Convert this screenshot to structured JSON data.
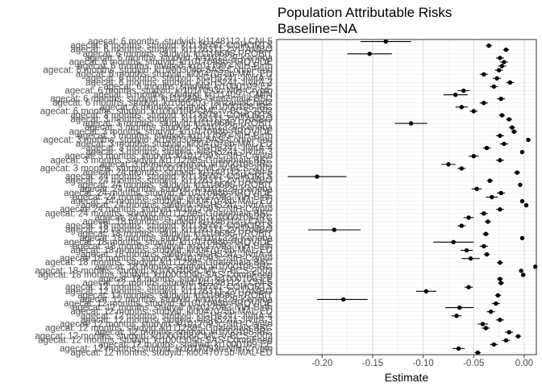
{
  "chart_data": {
    "type": "scatter",
    "title": "Population Attributable Risks",
    "subtitle": "Baseline=NA",
    "xlabel": "Estimate",
    "ylabel": "",
    "xlim": [
      -0.245,
      0.012
    ],
    "xticks": [
      -0.2,
      -0.15,
      -0.1,
      -0.05,
      0.0
    ],
    "xtick_labels": [
      "-0.20",
      "-0.15",
      "-0.10",
      "-0.05",
      "0.00"
    ],
    "grid": true,
    "legend": "none",
    "colors": {
      "point": "#000000",
      "grid_major": "#d9d9d9",
      "grid_minor": "#ececec",
      "panel_border": "#333333",
      "text": "#000000",
      "tick_text": "#4d4d4d"
    },
    "series": [
      {
        "label": "agecat: 6 months, studyid: ki1148112-LCNI-5",
        "estimate": -0.137,
        "lower": -0.162,
        "upper": -0.112
      },
      {
        "label": "agecat: 6 months, studyid: ki1135781-COHORTS",
        "estimate": -0.035,
        "lower": -0.038,
        "upper": -0.032
      },
      {
        "label": "agecat: 6 months, studyid: ki1126311-ZVITAMBO",
        "estimate": -0.018,
        "lower": -0.021,
        "upper": -0.015
      },
      {
        "label": "agecat: 6 months, studyid: ki1119695-PROBIT",
        "estimate": -0.153,
        "lower": -0.175,
        "upper": -0.131
      },
      {
        "label": "agecat: 6 months, studyid: ki1101329-Keneba",
        "estimate": -0.024,
        "lower": -0.028,
        "upper": -0.02
      },
      {
        "label": "agecat: 6 months, studyid: ki1017093b-PROVIDE",
        "estimate": -0.02,
        "lower": -0.024,
        "upper": -0.016
      },
      {
        "label": "agecat: 6 months, studyid: ki1017093-NIH-Birth",
        "estimate": -0.022,
        "lower": -0.026,
        "upper": -0.018
      },
      {
        "label": "agecat: 6 months, studyid: ki1000304b-SAS-CompFeed",
        "estimate": -0.025,
        "lower": -0.029,
        "upper": -0.021
      },
      {
        "label": "agecat: 6 months, studyid: ki0047075b-MAL-ED",
        "estimate": -0.04,
        "lower": -0.044,
        "upper": -0.036
      },
      {
        "label": "agecat: 6 months, studyid: kiGH5241-JiVitA-4",
        "estimate": -0.027,
        "lower": -0.031,
        "upper": -0.023
      },
      {
        "label": "agecat: 6 months, studyid: kiGH5241-JiVitA-3",
        "estimate": -0.014,
        "lower": -0.018,
        "upper": -0.01
      },
      {
        "label": "agecat: 6 months, studyid: ki1000109-EE",
        "estimate": -0.03,
        "lower": -0.034,
        "upper": -0.026
      },
      {
        "label": "agecat: 6 months, studyid: ki1017093c-NIH-Crypto",
        "estimate": -0.06,
        "lower": -0.066,
        "upper": -0.054
      },
      {
        "label": "agecat: 6 months, studyid: ki1114097-CMIN",
        "estimate": -0.068,
        "lower": -0.08,
        "upper": -0.056
      },
      {
        "label": "agecat: 6 months, studyid: ki1112895-Guatemala BSC",
        "estimate": -0.023,
        "lower": -0.027,
        "upper": -0.019
      },
      {
        "label": "agecat: 6 months, studyid: ki1066203-TanzaniaChild2",
        "estimate": -0.04,
        "lower": -0.044,
        "upper": -0.036
      },
      {
        "label": "agecat: 6 months, studyid: ki1000108-IRC",
        "estimate": -0.062,
        "lower": -0.068,
        "upper": -0.056
      },
      {
        "label": "agecat: 6 months, studyid: ki1000108-CMC-V-BCS-2002",
        "estimate": -0.05,
        "lower": -0.054,
        "upper": -0.046
      },
      {
        "label": "agecat: 3 months, studyid: ki1135781-COHORTS",
        "estimate": -0.022,
        "lower": -0.025,
        "upper": -0.019
      },
      {
        "label": "agecat: 3 months, studyid: ki1126311-ZVITAMBO",
        "estimate": -0.015,
        "lower": -0.018,
        "upper": -0.012
      },
      {
        "label": "agecat: 3 months, studyid: ki1119695-PROBIT",
        "estimate": -0.112,
        "lower": -0.128,
        "upper": -0.096
      },
      {
        "label": "agecat: 3 months, studyid: ki1101329-Keneba",
        "estimate": -0.012,
        "lower": -0.015,
        "upper": -0.009
      },
      {
        "label": "agecat: 3 months, studyid: ki1017093b-PROVIDE",
        "estimate": -0.01,
        "lower": -0.013,
        "upper": -0.007
      },
      {
        "label": "agecat: 3 months, studyid: ki1017093-NIH-Birth",
        "estimate": -0.024,
        "lower": -0.028,
        "upper": -0.02
      },
      {
        "label": "agecat: 3 months, studyid: ki1000304b-SAS-CompFeed",
        "estimate": 0.004,
        "lower": 0.002,
        "upper": 0.006
      },
      {
        "label": "agecat: 3 months, studyid: ki0047075b-MAL-ED",
        "estimate": -0.02,
        "lower": -0.024,
        "upper": -0.016
      },
      {
        "label": "agecat: 3 months, studyid: kiGH5241-JiVitA-4",
        "estimate": -0.037,
        "lower": -0.041,
        "upper": -0.033
      },
      {
        "label": "agecat: 3 months, studyid: kiGH5241-JiVitA-3",
        "estimate": -0.002,
        "lower": -0.004,
        "upper": 0.0
      },
      {
        "label": "agecat: 3 months, studyid: ki1017093c-NIH-Crypto",
        "estimate": -0.05,
        "lower": -0.055,
        "upper": -0.045
      },
      {
        "label": "agecat: 3 months, studyid: ki1112895-Guatemala BSC",
        "estimate": -0.024,
        "lower": -0.028,
        "upper": -0.02
      },
      {
        "label": "agecat: 3 months, studyid: ki1000108-IRC",
        "estimate": -0.075,
        "lower": -0.082,
        "upper": -0.068
      },
      {
        "label": "agecat: 3 months, studyid: ki1000108-CMC-V-BCS-2002",
        "estimate": -0.062,
        "lower": -0.066,
        "upper": -0.058
      },
      {
        "label": "agecat: 24 months, studyid: ki1148112-LCNI-5",
        "estimate": -0.007,
        "lower": -0.01,
        "upper": -0.004
      },
      {
        "label": "agecat: 24 months, studyid: ki1135781-COHORTS",
        "estimate": -0.205,
        "lower": -0.234,
        "upper": -0.176
      },
      {
        "label": "agecat: 24 months, studyid: ki1126311-ZVITAMBO",
        "estimate": -0.034,
        "lower": -0.037,
        "upper": -0.031
      },
      {
        "label": "agecat: 24 months, studyid: ki1119695-PROBIT",
        "estimate": -0.004,
        "lower": -0.006,
        "upper": -0.002
      },
      {
        "label": "agecat: 24 months, studyid: ki1101329-Keneba",
        "estimate": -0.047,
        "lower": -0.052,
        "upper": -0.042
      },
      {
        "label": "agecat: 24 months, studyid: ki1017093b-PROVIDE",
        "estimate": -0.023,
        "lower": -0.027,
        "upper": -0.019
      },
      {
        "label": "agecat: 24 months, studyid: ki1017093-NIH-Birth",
        "estimate": -0.032,
        "lower": -0.038,
        "upper": -0.026
      },
      {
        "label": "agecat: 24 months, studyid: ki0047075b-MAL-ED",
        "estimate": -0.002,
        "lower": -0.004,
        "upper": 0.0
      },
      {
        "label": "agecat: 24 months, studyid: kiGH5241-JiVitA-4",
        "estimate": 0.002,
        "lower": 0.0,
        "upper": 0.004
      },
      {
        "label": "agecat: 24 months, studyid: ki1017093c-NIH-Crypto",
        "estimate": -0.024,
        "lower": -0.028,
        "upper": -0.02
      },
      {
        "label": "agecat: 24 months, studyid: ki1112895-Guatemala BSC",
        "estimate": -0.04,
        "lower": -0.044,
        "upper": -0.036
      },
      {
        "label": "agecat: 24 months, studyid: ki1000108-IRC",
        "estimate": -0.055,
        "lower": -0.06,
        "upper": -0.05
      },
      {
        "label": "agecat: 18 months, studyid: ki1148112-LCNI-5",
        "estimate": -0.036,
        "lower": -0.039,
        "upper": -0.033
      },
      {
        "label": "agecat: 18 months, studyid: ki1135781-COHORTS",
        "estimate": -0.062,
        "lower": -0.066,
        "upper": -0.058
      },
      {
        "label": "agecat: 18 months, studyid: ki1126311-ZVITAMBO",
        "estimate": -0.188,
        "lower": -0.214,
        "upper": -0.162
      },
      {
        "label": "agecat: 18 months, studyid: ki1119695-PROBIT",
        "estimate": -0.038,
        "lower": -0.041,
        "upper": -0.035
      },
      {
        "label": "agecat: 18 months, studyid: ki1101329-Keneba",
        "estimate": -0.002,
        "lower": -0.004,
        "upper": 0.0
      },
      {
        "label": "agecat: 18 months, studyid: ki1017093b-PROVIDE",
        "estimate": -0.07,
        "lower": -0.09,
        "upper": -0.05
      },
      {
        "label": "agecat: 18 months, studyid: ki1017093-NIH-Birth",
        "estimate": -0.04,
        "lower": -0.044,
        "upper": -0.036
      },
      {
        "label": "agecat: 18 months, studyid: ki0047075b-MAL-ED",
        "estimate": -0.057,
        "lower": -0.063,
        "upper": -0.051
      },
      {
        "label": "agecat: 18 months, studyid: kiGH5241-JiVitA-4",
        "estimate": -0.037,
        "lower": -0.04,
        "upper": -0.034
      },
      {
        "label": "agecat: 18 months, studyid: ki1017093c-NIH-Crypto",
        "estimate": -0.053,
        "lower": -0.062,
        "upper": -0.044
      },
      {
        "label": "agecat: 18 months, studyid: ki1112895-Guatemala BSC",
        "estimate": -0.024,
        "lower": -0.027,
        "upper": -0.021
      },
      {
        "label": "agecat: 18 months, studyid: ki1000108-IRC",
        "estimate": 0.011,
        "lower": 0.009,
        "upper": 0.013
      },
      {
        "label": "agecat: 18 months, studyid: ki1000108-CMC-V-BCS-2002",
        "estimate": -0.003,
        "lower": -0.005,
        "upper": -0.001
      },
      {
        "label": "agecat: 18 months, studyid: ki1000304b-SAS-CompFeed",
        "estimate": -0.001,
        "lower": -0.003,
        "upper": 0.001
      },
      {
        "label": "agecat: 18 months, studyid: ki1000109-EE",
        "estimate": -0.024,
        "lower": -0.027,
        "upper": -0.021
      },
      {
        "label": "agecat: 12 months, studyid: ki1148112-LCNI-5",
        "estimate": -0.023,
        "lower": -0.026,
        "upper": -0.02
      },
      {
        "label": "agecat: 12 months, studyid: ki1135781-COHORTS",
        "estimate": -0.055,
        "lower": -0.059,
        "upper": -0.051
      },
      {
        "label": "agecat: 12 months, studyid: ki1126311-ZVITAMBO",
        "estimate": -0.097,
        "lower": -0.107,
        "upper": -0.087
      },
      {
        "label": "agecat: 12 months, studyid: ki1119695-PROBIT",
        "estimate": -0.026,
        "lower": -0.029,
        "upper": -0.023
      },
      {
        "label": "agecat: 12 months, studyid: ki1101329-Keneba",
        "estimate": -0.179,
        "lower": -0.205,
        "upper": -0.155
      },
      {
        "label": "agecat: 12 months, studyid: ki1017093b-PROVIDE",
        "estimate": -0.028,
        "lower": -0.032,
        "upper": -0.024
      },
      {
        "label": "agecat: 12 months, studyid: ki1017093-NIH-Birth",
        "estimate": -0.064,
        "lower": -0.078,
        "upper": -0.05
      },
      {
        "label": "agecat: 12 months, studyid: ki0047075b-MAL-ED",
        "estimate": -0.033,
        "lower": -0.037,
        "upper": -0.029
      },
      {
        "label": "agecat: 12 months, studyid: kiGH5241-JiVitA-4",
        "estimate": -0.067,
        "lower": -0.072,
        "upper": -0.062
      },
      {
        "label": "agecat: 12 months, studyid: kiGH5241-JiVitA-3",
        "estimate": -0.024,
        "lower": -0.028,
        "upper": -0.02
      },
      {
        "label": "agecat: 12 months, studyid: ki1017093c-NIH-Crypto",
        "estimate": -0.041,
        "lower": -0.046,
        "upper": -0.036
      },
      {
        "label": "agecat: 12 months, studyid: ki1112895-Guatemala BSC",
        "estimate": -0.038,
        "lower": -0.042,
        "upper": -0.034
      },
      {
        "label": "agecat: 12 months, studyid: ki1000108-IRC",
        "estimate": -0.015,
        "lower": -0.019,
        "upper": -0.011
      },
      {
        "label": "agecat: 12 months, studyid: ki1000108-CMC-V-BCS-2002",
        "estimate": -0.006,
        "lower": -0.009,
        "upper": -0.003
      },
      {
        "label": "agecat: 12 months, studyid: ki1000304b-SAS-CompFeed",
        "estimate": -0.018,
        "lower": -0.022,
        "upper": -0.014
      },
      {
        "label": "agecat: 12 months, studyid: ki1000109-EE",
        "estimate": -0.03,
        "lower": -0.034,
        "upper": -0.026
      },
      {
        "label": "agecat: 12 months, studyid: ki1017093c-NIH-Crypto",
        "estimate": -0.065,
        "lower": -0.071,
        "upper": -0.059
      },
      {
        "label": "agecat: 12 months, studyid: ki0047075b-MAL-ED",
        "estimate": -0.046,
        "lower": -0.049,
        "upper": -0.043
      }
    ]
  }
}
